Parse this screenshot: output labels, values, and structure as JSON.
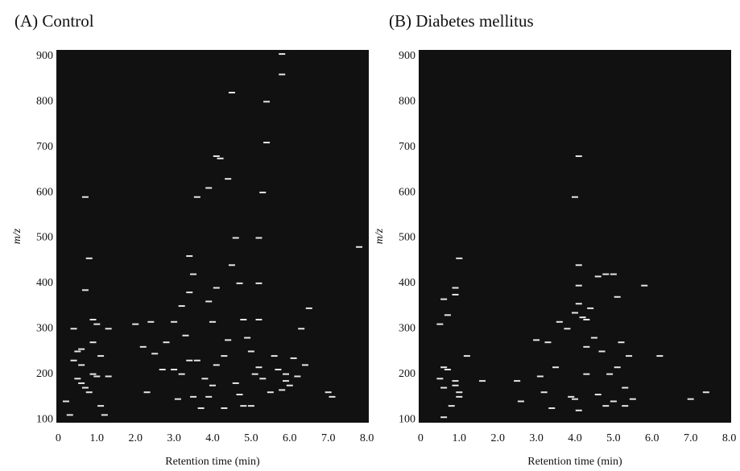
{
  "chart_data": [
    {
      "type": "scatter",
      "title": "(A) Control",
      "x_label": "Retention time (min)",
      "y_label": "m/z",
      "background": "#111111",
      "color": "#e6e6e6",
      "xlim": [
        -0.05,
        8.05
      ],
      "ylim": [
        93,
        914
      ],
      "xticks": [
        0,
        {
          "value": 1,
          "label": "1.0"
        },
        {
          "value": 2,
          "label": "2.0"
        },
        {
          "value": 3,
          "label": "3.0"
        },
        {
          "value": 4,
          "label": "4.0"
        },
        {
          "value": 5,
          "label": "5.0"
        },
        {
          "value": 6,
          "label": "6.0"
        },
        {
          "value": 7,
          "label": "7.0"
        },
        {
          "value": 8,
          "label": "8.0"
        }
      ],
      "yticks": [
        100,
        200,
        300,
        400,
        500,
        600,
        700,
        800,
        900
      ],
      "x": [
        0.2,
        0.3,
        0.4,
        0.5,
        0.6,
        0.5,
        0.6,
        0.7,
        0.8,
        0.9,
        1.0,
        1.3,
        1.1,
        1.2,
        0.7,
        0.8,
        0.7,
        0.9,
        1.0,
        1.3,
        0.4,
        0.6,
        1.1,
        0.9,
        2.2,
        2.0,
        2.4,
        2.5,
        2.8,
        3.0,
        2.7,
        3.1,
        3.5,
        3.2,
        3.4,
        3.3,
        3.0,
        3.2,
        3.4,
        3.5,
        3.4,
        3.6,
        3.8,
        3.9,
        4.0,
        4.1,
        4.3,
        4.4,
        4.0,
        3.9,
        4.1,
        3.6,
        3.9,
        4.1,
        4.2,
        4.4,
        4.5,
        4.5,
        4.6,
        4.7,
        4.8,
        4.9,
        4.6,
        4.7,
        5.0,
        5.1,
        5.2,
        5.3,
        5.0,
        5.2,
        5.2,
        5.3,
        5.2,
        5.4,
        5.4,
        5.8,
        5.8,
        5.6,
        5.7,
        5.9,
        6.1,
        6.0,
        6.3,
        6.4,
        6.5,
        7.0,
        7.1,
        7.8,
        4.3,
        4.8,
        5.5,
        3.7,
        2.3,
        5.8,
        5.9,
        6.2
      ],
      "y": [
        140,
        110,
        300,
        250,
        255,
        190,
        180,
        170,
        160,
        200,
        195,
        195,
        130,
        110,
        385,
        455,
        590,
        320,
        310,
        300,
        230,
        220,
        240,
        270,
        260,
        310,
        315,
        245,
        270,
        210,
        210,
        145,
        150,
        200,
        230,
        285,
        315,
        350,
        380,
        420,
        460,
        230,
        190,
        150,
        175,
        220,
        240,
        275,
        315,
        360,
        390,
        590,
        610,
        680,
        675,
        630,
        820,
        440,
        500,
        400,
        320,
        280,
        180,
        155,
        130,
        200,
        215,
        190,
        250,
        320,
        400,
        600,
        500,
        710,
        800,
        905,
        860,
        240,
        210,
        200,
        235,
        175,
        300,
        220,
        345,
        160,
        150,
        480,
        125,
        130,
        160,
        125,
        160,
        165,
        185,
        195
      ]
    },
    {
      "type": "scatter",
      "title": "(B) Diabetes mellitus",
      "x_label": "Retention time (min)",
      "y_label": "m/z",
      "background": "#111111",
      "color": "#e6e6e6",
      "xlim": [
        -0.05,
        8.05
      ],
      "ylim": [
        93,
        914
      ],
      "xticks": [
        0,
        {
          "value": 1,
          "label": "1.0"
        },
        {
          "value": 2,
          "label": "2.0"
        },
        {
          "value": 3,
          "label": "3.0"
        },
        {
          "value": 4,
          "label": "4.0"
        },
        {
          "value": 5,
          "label": "5.0"
        },
        {
          "value": 6,
          "label": "6.0"
        },
        {
          "value": 7,
          "label": "7.0"
        },
        {
          "value": 8,
          "label": "8.0"
        }
      ],
      "yticks": [
        100,
        200,
        300,
        400,
        500,
        600,
        700,
        800,
        900
      ],
      "x": [
        0.6,
        0.9,
        1.0,
        0.9,
        0.7,
        0.5,
        0.6,
        0.7,
        0.5,
        0.6,
        0.9,
        1.0,
        1.0,
        0.8,
        0.9,
        0.6,
        1.2,
        1.6,
        3.0,
        3.3,
        2.5,
        2.6,
        3.1,
        3.2,
        3.5,
        3.6,
        3.8,
        4.0,
        4.1,
        4.2,
        4.3,
        4.0,
        4.1,
        4.1,
        4.1,
        4.4,
        4.6,
        4.8,
        5.0,
        5.1,
        5.4,
        5.2,
        5.1,
        5.3,
        4.9,
        4.7,
        4.3,
        4.5,
        3.9,
        4.0,
        4.1,
        4.3,
        4.6,
        4.8,
        5.0,
        5.3,
        5.5,
        5.8,
        6.2,
        7.0,
        7.4,
        3.4
      ],
      "y": [
        365,
        390,
        455,
        375,
        330,
        310,
        215,
        210,
        190,
        170,
        175,
        160,
        150,
        130,
        185,
        105,
        240,
        185,
        275,
        270,
        185,
        140,
        195,
        160,
        215,
        315,
        300,
        335,
        355,
        325,
        320,
        590,
        680,
        440,
        395,
        345,
        415,
        420,
        420,
        370,
        240,
        270,
        215,
        170,
        200,
        250,
        260,
        280,
        150,
        145,
        120,
        200,
        155,
        130,
        140,
        130,
        145,
        395,
        240,
        145,
        160,
        125
      ]
    }
  ]
}
